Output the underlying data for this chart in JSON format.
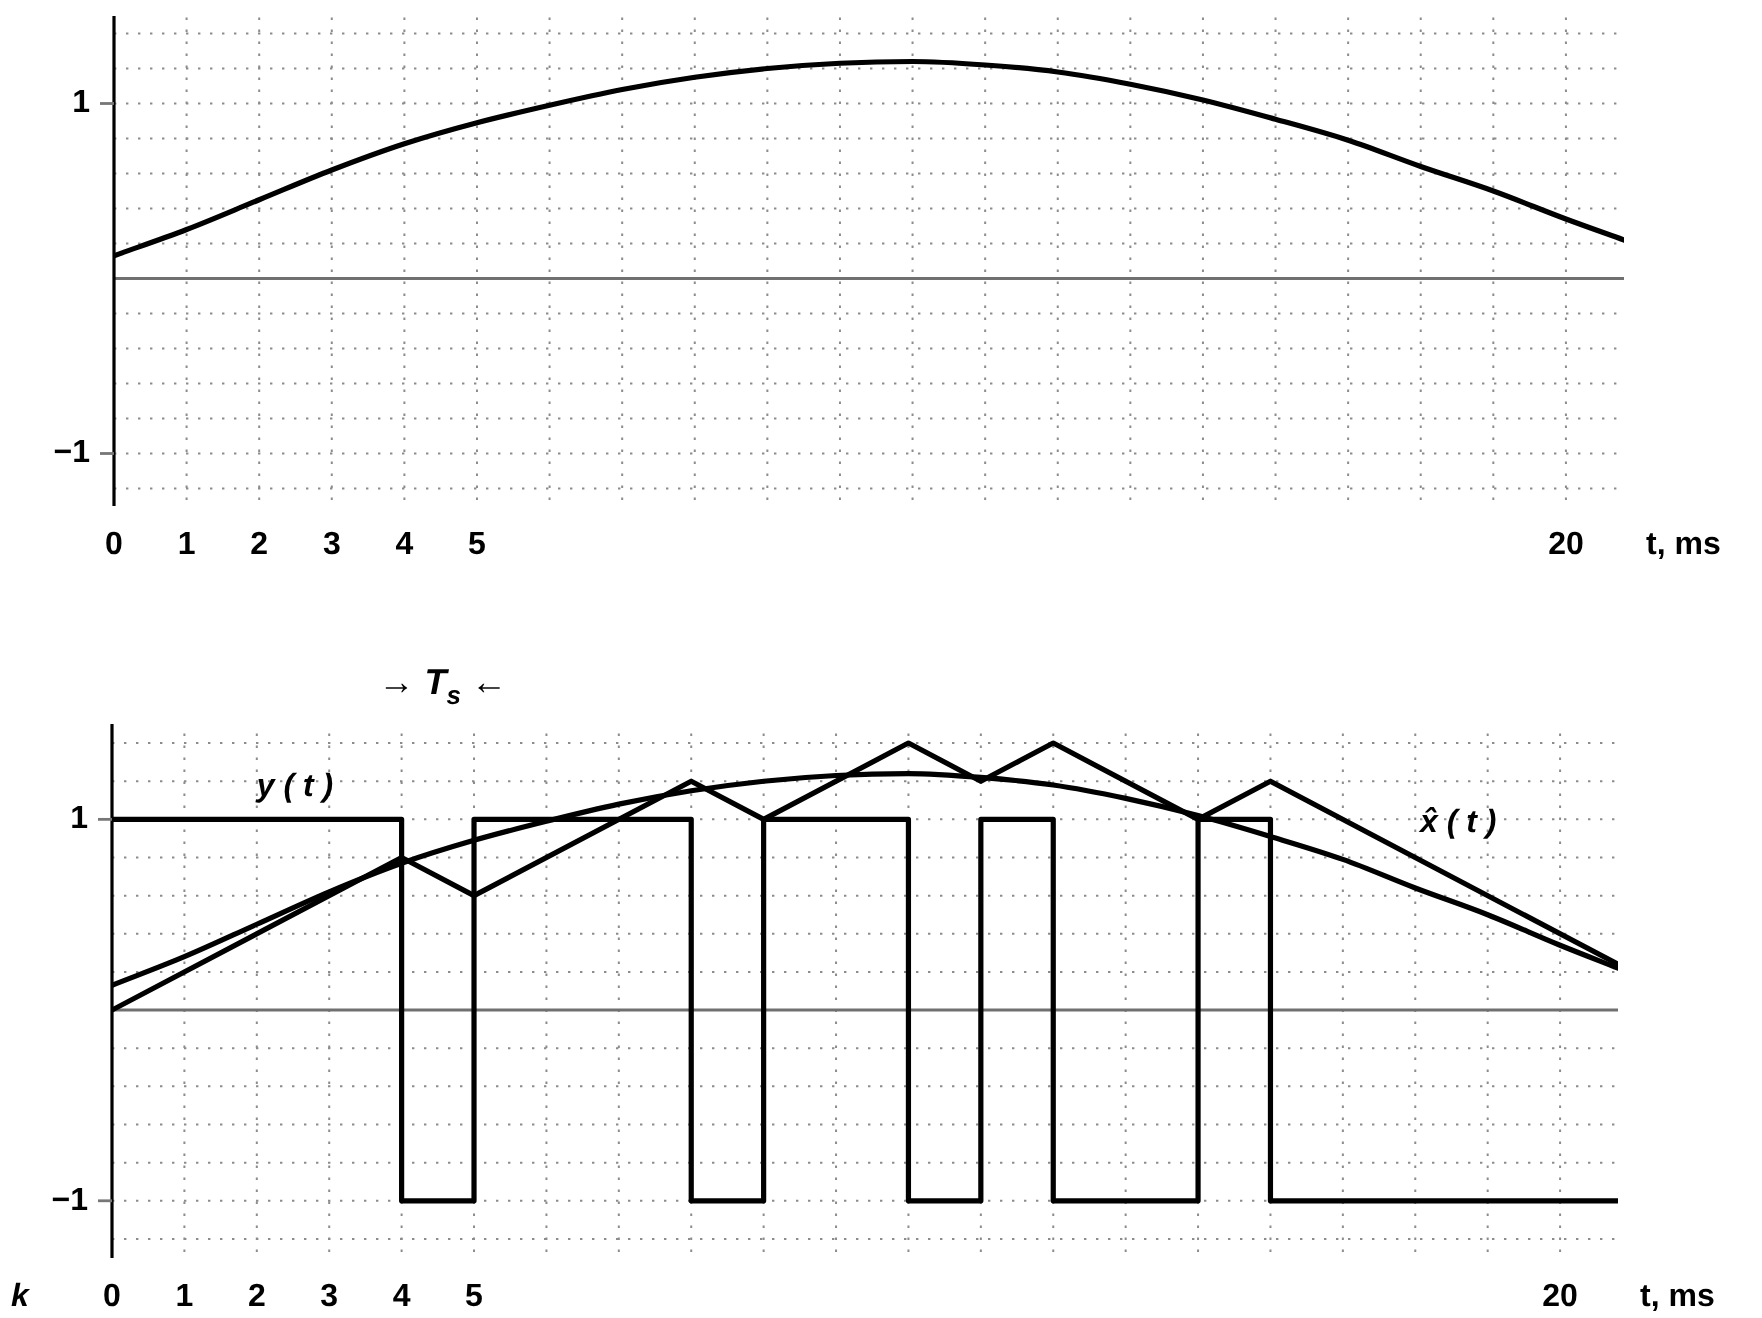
{
  "chart_data": [
    {
      "type": "line",
      "xlabel": "t, ms",
      "x": [
        0,
        1,
        2,
        3,
        4,
        5,
        6,
        7,
        8,
        9,
        10,
        11,
        12,
        13,
        14,
        15,
        16,
        17,
        18,
        19,
        20,
        20.8
      ],
      "xlim": [
        0,
        20.8
      ],
      "ylim": [
        -1.3,
        1.5
      ],
      "xticks": [
        0,
        1,
        2,
        3,
        4,
        5,
        {
          "value": 6,
          "label": null
        },
        {
          "value": 7,
          "label": null
        },
        {
          "value": 8,
          "label": null
        },
        {
          "value": 9,
          "label": null
        },
        {
          "value": 10,
          "label": null
        },
        {
          "value": 11,
          "label": null
        },
        {
          "value": 12,
          "label": null
        },
        {
          "value": 13,
          "label": null
        },
        {
          "value": 14,
          "label": null
        },
        {
          "value": 15,
          "label": null
        },
        {
          "value": 16,
          "label": null
        },
        {
          "value": 17,
          "label": null
        },
        {
          "value": 18,
          "label": null
        },
        {
          "value": 19,
          "label": null
        },
        20
      ],
      "yticks": [
        {
          "value": -1.2,
          "label": null
        },
        {
          "value": -1,
          "label": "−1"
        },
        {
          "value": -0.8,
          "label": null
        },
        {
          "value": -0.6,
          "label": null
        },
        {
          "value": -0.4,
          "label": null
        },
        {
          "value": -0.2,
          "label": null
        },
        {
          "value": 0,
          "label": null
        },
        {
          "value": 0.2,
          "label": null
        },
        {
          "value": 0.4,
          "label": null
        },
        {
          "value": 0.6,
          "label": null
        },
        {
          "value": 0.8,
          "label": null
        },
        1,
        {
          "value": 1.2,
          "label": null
        },
        {
          "value": 1.4,
          "label": null
        }
      ],
      "grid": true,
      "ref_lines": [
        {
          "axis": "y",
          "value": 0,
          "color": "#707070"
        }
      ],
      "series": [
        {
          "color": "#000000",
          "values": [
            0.13,
            0.28,
            0.45,
            0.62,
            0.77,
            0.89,
            0.99,
            1.08,
            1.15,
            1.2,
            1.23,
            1.24,
            1.22,
            1.18,
            1.11,
            1.02,
            0.91,
            0.79,
            0.64,
            0.5,
            0.34,
            0.22
          ]
        }
      ]
    },
    {
      "type": "line",
      "xlabel": "t, ms",
      "annotations": [
        "→ T$_{s}$ ←",
        "k"
      ],
      "xlim": [
        0,
        20.8
      ],
      "ylim": [
        -1.3,
        1.5
      ],
      "xticks": [
        0,
        1,
        2,
        3,
        4,
        5,
        {
          "value": 6,
          "label": null
        },
        {
          "value": 7,
          "label": null
        },
        {
          "value": 8,
          "label": null
        },
        {
          "value": 9,
          "label": null
        },
        {
          "value": 10,
          "label": null
        },
        {
          "value": 11,
          "label": null
        },
        {
          "value": 12,
          "label": null
        },
        {
          "value": 13,
          "label": null
        },
        {
          "value": 14,
          "label": null
        },
        {
          "value": 15,
          "label": null
        },
        {
          "value": 16,
          "label": null
        },
        {
          "value": 17,
          "label": null
        },
        {
          "value": 18,
          "label": null
        },
        {
          "value": 19,
          "label": null
        },
        20
      ],
      "yticks": [
        {
          "value": -1.2,
          "label": null
        },
        {
          "value": -1,
          "label": "−1"
        },
        {
          "value": -0.8,
          "label": null
        },
        {
          "value": -0.6,
          "label": null
        },
        {
          "value": -0.4,
          "label": null
        },
        {
          "value": -0.2,
          "label": null
        },
        {
          "value": 0,
          "label": null
        },
        {
          "value": 0.2,
          "label": null
        },
        {
          "value": 0.4,
          "label": null
        },
        {
          "value": 0.6,
          "label": null
        },
        {
          "value": 0.8,
          "label": null
        },
        1,
        {
          "value": 1.2,
          "label": null
        },
        {
          "value": 1.4,
          "label": null
        }
      ],
      "grid": true,
      "ref_lines": [
        {
          "axis": "y",
          "value": 0,
          "color": "#707070"
        }
      ],
      "series": [
        {
          "color": "#000000",
          "x": [
            0,
            1,
            2,
            3,
            4,
            5,
            6,
            7,
            8,
            9,
            10,
            11,
            12,
            13,
            14,
            15,
            16,
            17,
            18,
            19,
            20,
            20.8
          ],
          "values": [
            0.13,
            0.28,
            0.45,
            0.62,
            0.77,
            0.89,
            0.99,
            1.08,
            1.15,
            1.2,
            1.23,
            1.24,
            1.22,
            1.18,
            1.11,
            1.02,
            0.91,
            0.79,
            0.64,
            0.5,
            0.34,
            0.22
          ]
        },
        {
          "name": "x̂ ( t )",
          "color": "#000000",
          "x": [
            0,
            4,
            5,
            8,
            9,
            11,
            12,
            13,
            15,
            16,
            20.8
          ],
          "values": [
            0,
            0.8,
            0.6,
            1.2,
            1,
            1.4,
            1.2,
            1.4,
            1,
            1.2,
            0.24
          ]
        },
        {
          "name": "y ( t )",
          "type": "step",
          "color": "#000000",
          "x": [
            0,
            4,
            5,
            8,
            9,
            11,
            12,
            13,
            15,
            16,
            20.8
          ],
          "values": [
            1,
            -1,
            1,
            -1,
            1,
            -1,
            1,
            -1,
            1,
            -1,
            -1
          ]
        }
      ]
    }
  ]
}
